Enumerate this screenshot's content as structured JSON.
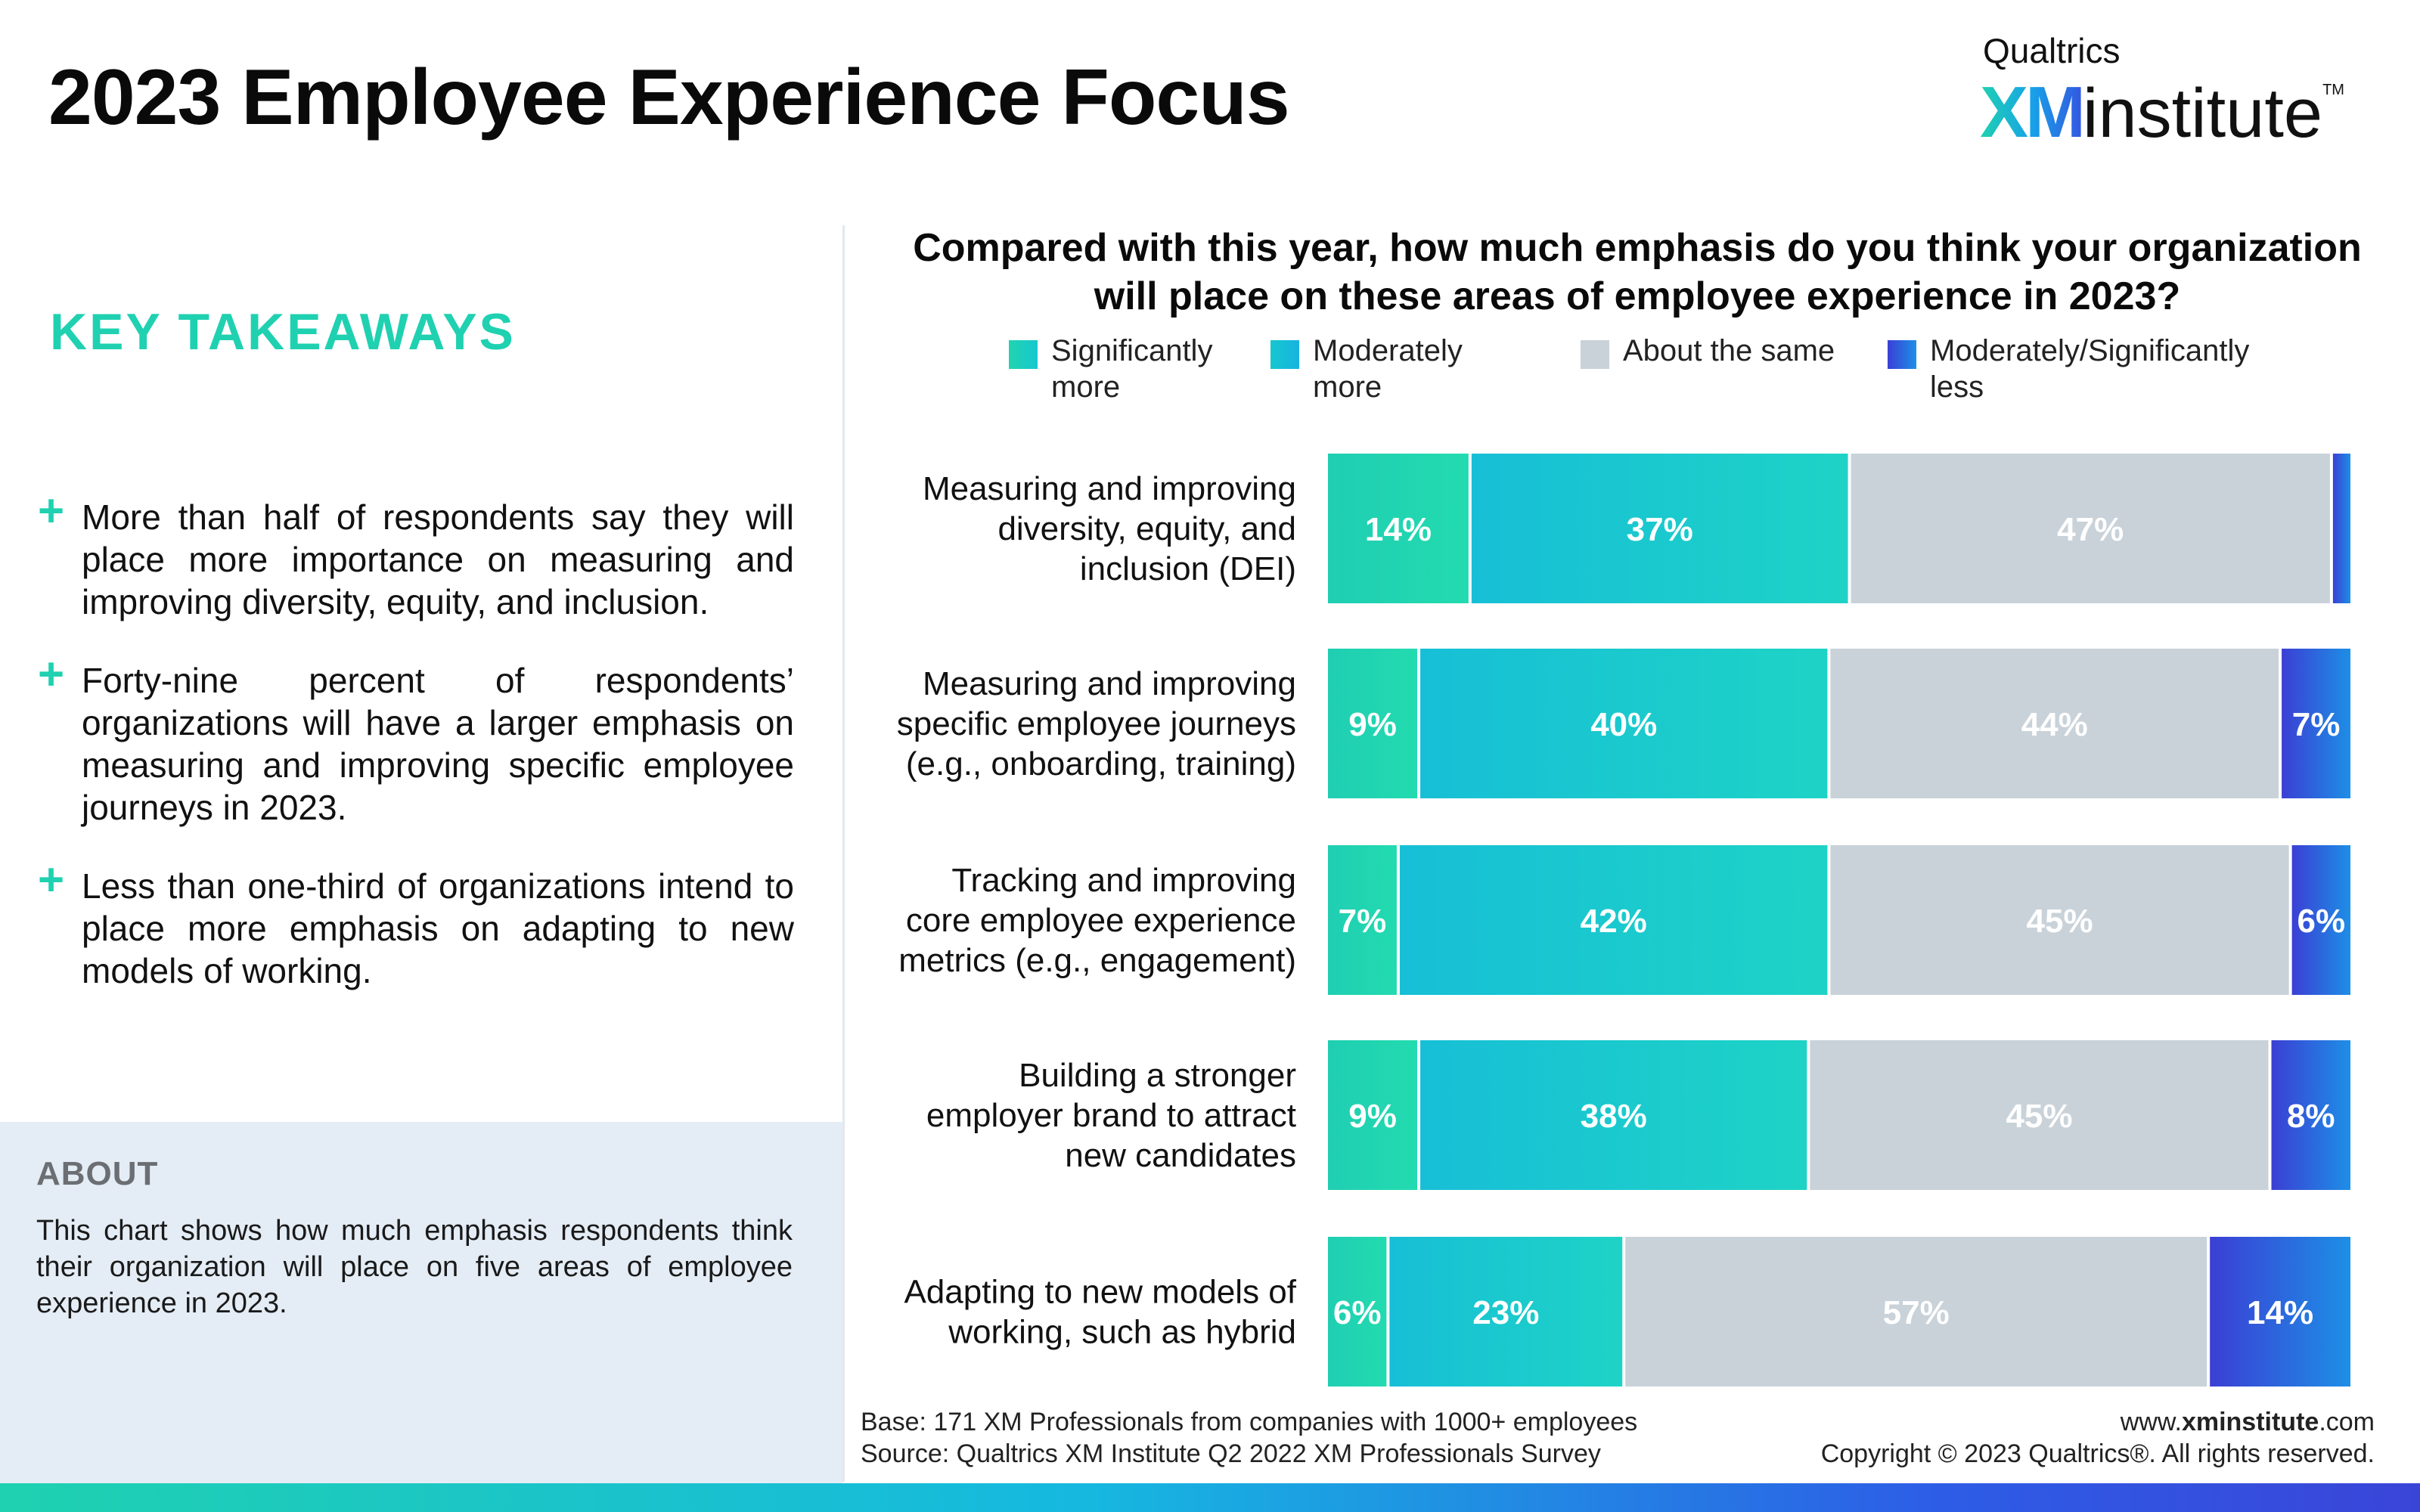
{
  "header": {
    "title": "2023 Employee Experience Focus",
    "logo_top": "Qualtrics",
    "logo_xm": "XM",
    "logo_institute": "institute",
    "logo_tm": "TM"
  },
  "left_panel": {
    "key_takeaways_heading": "KEY TAKEAWAYS",
    "takeaways": [
      "More than half of respondents say they will place more importance on measuring and improving diversity, equity, and inclusion.",
      "Forty-nine percent of respondents’ organizations will have a larger emphasis on measuring and improving specific employee journeys in 2023.",
      "Less than one-third of organizations intend to place more emphasis on adapting to new models of working."
    ],
    "plus_glyph": "+",
    "about_heading": "ABOUT",
    "about_text": "This chart shows how much emphasis respondents think their organization will place on five areas of employee experience in 2023."
  },
  "chart_data": {
    "type": "bar",
    "orientation": "horizontal",
    "stacked": true,
    "percent": true,
    "title": "Compared with this year, how much emphasis do you think your organization will place on these areas of employee experience in 2023?",
    "categories": [
      "Measuring and improving diversity, equity, and inclusion (DEI)",
      "Measuring and improving specific employee journeys (e.g., onboarding, training)",
      "Tracking and improving core employee experience metrics (e.g., engagement)",
      "Building a stronger employer brand to attract new candidates",
      "Adapting to new models of working, such as hybrid"
    ],
    "series": [
      {
        "name": "Significantly more",
        "values": [
          14,
          9,
          7,
          9,
          6
        ],
        "color": "#22d4b0",
        "labels": [
          "14%",
          "9%",
          "7%",
          "9%",
          "6%"
        ]
      },
      {
        "name": "Moderately more",
        "values": [
          37,
          40,
          42,
          38,
          23
        ],
        "color": "#16c7cf",
        "labels": [
          "37%",
          "40%",
          "42%",
          "38%",
          "23%"
        ]
      },
      {
        "name": "About the same",
        "values": [
          47,
          44,
          45,
          45,
          57
        ],
        "color": "#c9d2d9",
        "labels": [
          "47%",
          "44%",
          "45%",
          "45%",
          "57%"
        ]
      },
      {
        "name": "Moderately/Significantly less",
        "values": [
          2,
          7,
          6,
          8,
          14
        ],
        "color": "#2a52e0",
        "labels": [
          "",
          "7%",
          "6%",
          "8%",
          "14%"
        ]
      }
    ],
    "legend_position": "top",
    "grid": false
  },
  "footer": {
    "base": "Base: 171 XM Professionals from companies with 1000+ employees",
    "source": "Source: Qualtrics XM Institute Q2 2022 XM Professionals Survey",
    "url_prefix": "www.",
    "url_bold": "xminstitute",
    "url_suffix": ".com",
    "copyright": "Copyright © 2023 Qualtrics®. All rights reserved."
  }
}
